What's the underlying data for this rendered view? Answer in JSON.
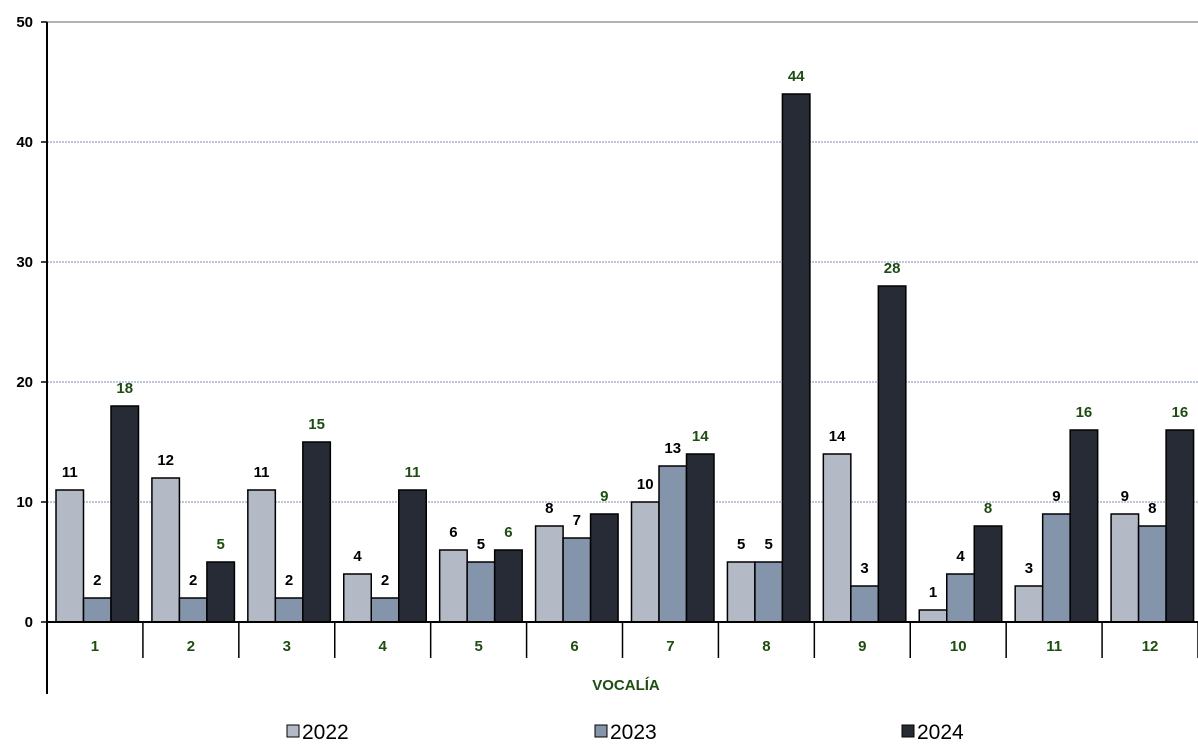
{
  "chart_data": {
    "type": "bar",
    "xlabel": "VOCALÍA",
    "ylabel": "",
    "ylim": [
      0,
      50
    ],
    "yticks": [
      "0",
      "10",
      "20",
      "30",
      "40",
      "50"
    ],
    "categories": [
      "1",
      "2",
      "3",
      "4",
      "5",
      "6",
      "7",
      "8",
      "9",
      "10",
      "11",
      "12"
    ],
    "series": [
      {
        "name": "2022",
        "values": [
          11,
          12,
          11,
          4,
          6,
          8,
          10,
          5,
          14,
          1,
          3,
          9
        ],
        "color": "#b3bac6",
        "label_color": "#000000"
      },
      {
        "name": "2023",
        "values": [
          2,
          2,
          2,
          2,
          5,
          7,
          13,
          5,
          3,
          4,
          9,
          8
        ],
        "color": "#8494aa",
        "label_color": "#000000"
      },
      {
        "name": "2024",
        "values": [
          18,
          5,
          15,
          11,
          6,
          9,
          14,
          44,
          28,
          8,
          16,
          16
        ],
        "color": "#262b35",
        "label_color": "#1e4d12"
      }
    ],
    "grid": true,
    "legend_position": "bottom"
  }
}
